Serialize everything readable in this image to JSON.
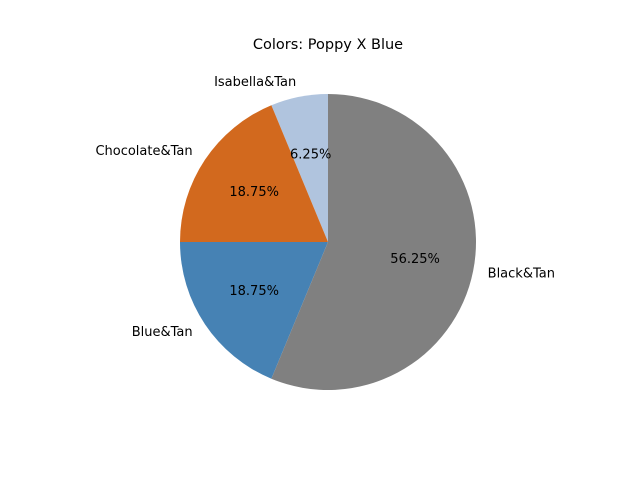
{
  "chart_data": {
    "type": "pie",
    "title": "Colors: Poppy X Blue",
    "slices": [
      {
        "label": "Isabella&Tan",
        "value": 6.25,
        "pct_label": "6.25%",
        "color": "#b0c4de"
      },
      {
        "label": "Chocolate&Tan",
        "value": 18.75,
        "pct_label": "18.75%",
        "color": "#d2691e"
      },
      {
        "label": "Blue&Tan",
        "value": 18.75,
        "pct_label": "18.75%",
        "color": "#4682b4"
      },
      {
        "label": "Black&Tan",
        "value": 56.25,
        "pct_label": "56.25%",
        "color": "#808080"
      }
    ]
  }
}
